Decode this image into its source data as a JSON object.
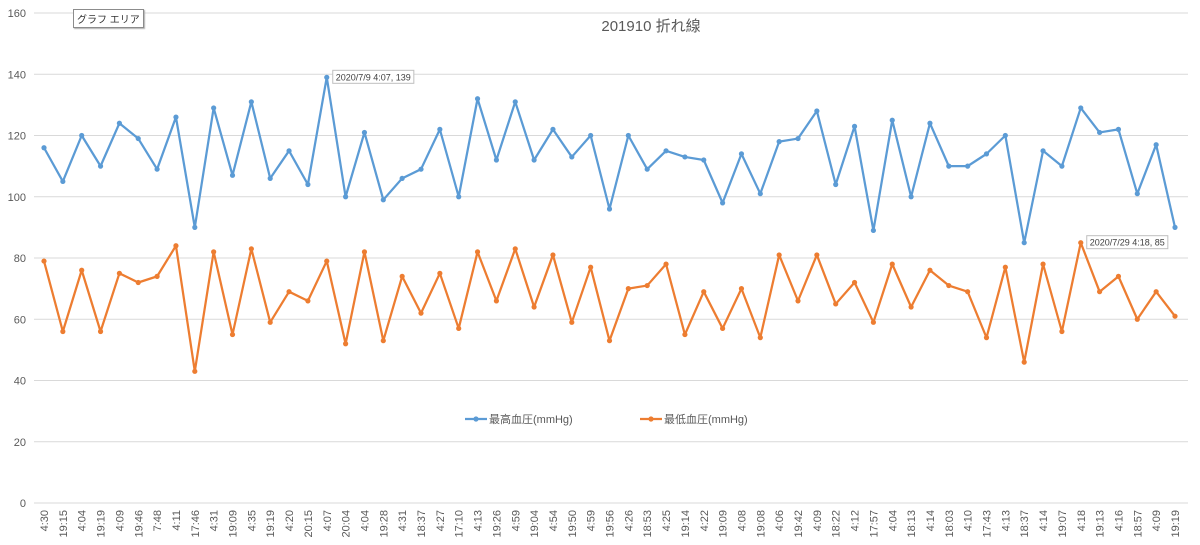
{
  "chart_area_label": "グラフ エリア",
  "chart_data": {
    "type": "line",
    "title": "201910  折れ線",
    "xlabel": "",
    "ylabel": "",
    "ylim": [
      0,
      160
    ],
    "yticks": [
      0,
      20,
      40,
      60,
      80,
      100,
      120,
      140,
      160
    ],
    "grid": true,
    "legend_position": "bottom-center",
    "categories": [
      "4:30",
      "19:15",
      "4:04",
      "19:19",
      "4:09",
      "19:46",
      "7:48",
      "4:11",
      "17:46",
      "4:31",
      "19:09",
      "4:35",
      "19:19",
      "4:20",
      "20:15",
      "4:07",
      "20:04",
      "4:04",
      "19:28",
      "4:31",
      "18:37",
      "4:27",
      "17:10",
      "4:13",
      "19:26",
      "4:59",
      "19:04",
      "4:54",
      "19:50",
      "4:59",
      "19:56",
      "4:26",
      "18:53",
      "4:25",
      "19:14",
      "4:22",
      "19:09",
      "4:08",
      "19:08",
      "4:06",
      "19:42",
      "4:09",
      "18:22",
      "4:12",
      "17:57",
      "4:04",
      "18:13",
      "4:14",
      "18:03",
      "4:10",
      "17:43",
      "4:13",
      "18:37",
      "4:14",
      "19:07",
      "4:18",
      "19:13",
      "4:16",
      "18:57",
      "4:09",
      "19:19"
    ],
    "series": [
      {
        "name": "最高血圧(mmHg)",
        "color": "#5b9bd5",
        "values": [
          116,
          105,
          120,
          110,
          124,
          119,
          109,
          126,
          90,
          129,
          107,
          131,
          106,
          115,
          104,
          139,
          100,
          121,
          99,
          106,
          109,
          122,
          100,
          132,
          112,
          131,
          112,
          122,
          113,
          120,
          96,
          120,
          109,
          115,
          113,
          112,
          98,
          114,
          101,
          118,
          119,
          128,
          104,
          123,
          89,
          125,
          100,
          124,
          110,
          110,
          114,
          120,
          85,
          115,
          110,
          129,
          121,
          122,
          101,
          117,
          90
        ]
      },
      {
        "name": "最低血圧(mmHg)",
        "color": "#ed7d31",
        "values": [
          79,
          56,
          76,
          56,
          75,
          72,
          74,
          84,
          43,
          82,
          55,
          83,
          59,
          69,
          66,
          79,
          52,
          82,
          53,
          74,
          62,
          75,
          57,
          82,
          66,
          83,
          64,
          81,
          59,
          77,
          53,
          70,
          71,
          78,
          55,
          69,
          57,
          70,
          54,
          81,
          66,
          81,
          65,
          72,
          59,
          78,
          64,
          76,
          71,
          69,
          54,
          77,
          46,
          78,
          56,
          85,
          69,
          74,
          60,
          69,
          61
        ]
      }
    ],
    "annotations": [
      {
        "series": 0,
        "index": 15,
        "text": "2020/7/9 4:07, 139"
      },
      {
        "series": 1,
        "index": 55,
        "text": "2020/7/29 4:18, 85"
      }
    ]
  }
}
